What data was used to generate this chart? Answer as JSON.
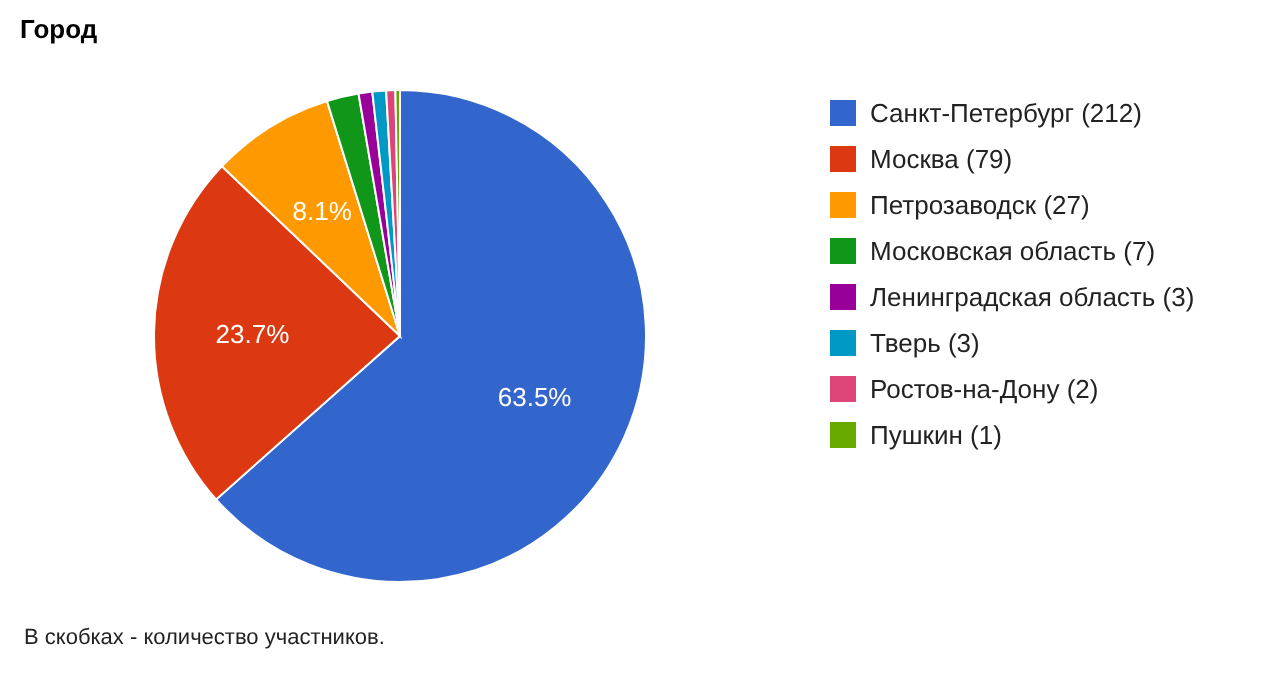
{
  "chart_data": {
    "type": "pie",
    "title": "Город",
    "categories": [
      "Санкт-Петербург (212)",
      "Москва (79)",
      "Петрозаводск (27)",
      "Московская область (7)",
      "Ленинградская область (3)",
      "Тверь (3)",
      "Ростов-на-Дону (2)",
      "Пушкин (1)"
    ],
    "values": [
      63.5,
      23.7,
      8.1,
      2.1,
      0.9,
      0.9,
      0.6,
      0.3
    ],
    "colors": [
      "#3366cc",
      "#dc3912",
      "#ff9900",
      "#109618",
      "#990099",
      "#0099c6",
      "#dd4477",
      "#66aa00"
    ],
    "value_labels": [
      "63.5%",
      "23.7%",
      "8.1%",
      null,
      null,
      null,
      null,
      null
    ],
    "legend": "right",
    "annotations": [
      "В скобках - количество участников."
    ]
  }
}
